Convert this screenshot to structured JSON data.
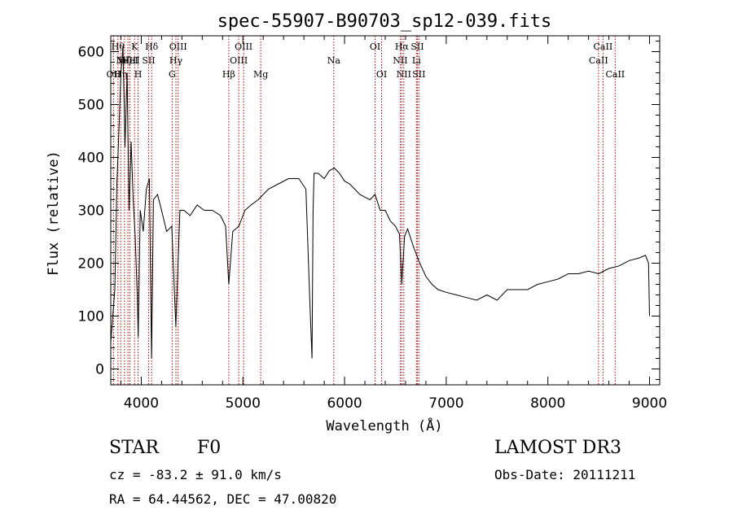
{
  "chart_data": {
    "type": "line",
    "title": "spec-55907-B90703_sp12-039.fits",
    "xlabel": "Wavelength (Å)",
    "ylabel": "Flux (relative)",
    "xlim": [
      3700,
      9100
    ],
    "ylim": [
      -30,
      630
    ],
    "xticks": [
      4000,
      5000,
      6000,
      7000,
      8000,
      9000
    ],
    "yticks": [
      0,
      100,
      200,
      300,
      400,
      500,
      600
    ],
    "series": [
      {
        "name": "flux",
        "x": [
          3700,
          3740,
          3760,
          3780,
          3800,
          3820,
          3840,
          3860,
          3880,
          3900,
          3920,
          3940,
          3960,
          3970,
          3990,
          4020,
          4050,
          4080,
          4101,
          4120,
          4160,
          4200,
          4250,
          4300,
          4340,
          4380,
          4420,
          4480,
          4550,
          4620,
          4700,
          4780,
          4830,
          4861,
          4900,
          4960,
          5020,
          5080,
          5150,
          5250,
          5350,
          5450,
          5550,
          5620,
          5660,
          5680,
          5690,
          5700,
          5740,
          5800,
          5850,
          5900,
          5950,
          6000,
          6050,
          6100,
          6150,
          6200,
          6250,
          6300,
          6350,
          6400,
          6450,
          6500,
          6540,
          6563,
          6590,
          6620,
          6680,
          6740,
          6800,
          6860,
          6920,
          7000,
          7100,
          7200,
          7300,
          7400,
          7500,
          7600,
          7700,
          7800,
          7900,
          8000,
          8100,
          8200,
          8300,
          8400,
          8500,
          8600,
          8700,
          8800,
          8900,
          8960,
          8990,
          9000
        ],
        "values": [
          50,
          150,
          350,
          450,
          560,
          610,
          420,
          560,
          300,
          430,
          320,
          250,
          140,
          60,
          300,
          260,
          340,
          360,
          20,
          320,
          330,
          300,
          260,
          270,
          80,
          300,
          300,
          290,
          310,
          300,
          300,
          290,
          270,
          160,
          260,
          270,
          300,
          310,
          320,
          340,
          350,
          360,
          360,
          340,
          120,
          20,
          300,
          370,
          370,
          360,
          375,
          380,
          370,
          355,
          350,
          340,
          330,
          325,
          320,
          330,
          300,
          300,
          280,
          270,
          255,
          160,
          250,
          265,
          230,
          200,
          175,
          160,
          150,
          145,
          140,
          135,
          130,
          140,
          130,
          150,
          150,
          150,
          160,
          165,
          170,
          180,
          180,
          185,
          180,
          190,
          195,
          205,
          210,
          215,
          200,
          100
        ]
      }
    ],
    "line_markers": [
      {
        "w": 3727,
        "label": "OII",
        "row": 3
      },
      {
        "w": 3771,
        "label": "Hθ",
        "row": 1
      },
      {
        "w": 3798,
        "label": "Hη",
        "row": 3
      },
      {
        "w": 3835,
        "label": "Hζ",
        "row": 2
      },
      {
        "w": 3869,
        "label": "NeIII",
        "row": 2
      },
      {
        "w": 3889,
        "label": "HeI",
        "row": 2
      },
      {
        "w": 3934,
        "label": "K",
        "row": 1
      },
      {
        "w": 3969,
        "label": "H",
        "row": 3
      },
      {
        "w": 4072,
        "label": "SII",
        "row": 2
      },
      {
        "w": 4102,
        "label": "Hδ",
        "row": 1
      },
      {
        "w": 4304,
        "label": "G",
        "row": 3
      },
      {
        "w": 4341,
        "label": "Hγ",
        "row": 2
      },
      {
        "w": 4363,
        "label": "OIII",
        "row": 1
      },
      {
        "w": 4861,
        "label": "Hβ",
        "row": 3
      },
      {
        "w": 4959,
        "label": "OIII",
        "row": 2
      },
      {
        "w": 5007,
        "label": "OIII",
        "row": 1
      },
      {
        "w": 5175,
        "label": "Mg",
        "row": 3
      },
      {
        "w": 5894,
        "label": "Na",
        "row": 2
      },
      {
        "w": 6300,
        "label": "OI",
        "row": 1
      },
      {
        "w": 6364,
        "label": "OI",
        "row": 3
      },
      {
        "w": 6548,
        "label": "NII",
        "row": 2
      },
      {
        "w": 6563,
        "label": "Hα",
        "row": 1
      },
      {
        "w": 6583,
        "label": "NII",
        "row": 3
      },
      {
        "w": 6707,
        "label": "Li",
        "row": 2
      },
      {
        "w": 6716,
        "label": "SII",
        "row": 1
      },
      {
        "w": 6731,
        "label": "SII",
        "row": 3
      },
      {
        "w": 8498,
        "label": "CaII",
        "row": 2
      },
      {
        "w": 8542,
        "label": "CaII",
        "row": 1
      },
      {
        "w": 8662,
        "label": "CaII",
        "row": 3
      }
    ]
  },
  "info": {
    "class": "STAR",
    "subclass": "F0",
    "survey": "LAMOST DR3",
    "redshift": "cz = -83.2 ± 91.0 km/s",
    "obs_date": "Obs-Date: 20111211",
    "coords": "RA =  64.44562, DEC =  47.00820"
  }
}
